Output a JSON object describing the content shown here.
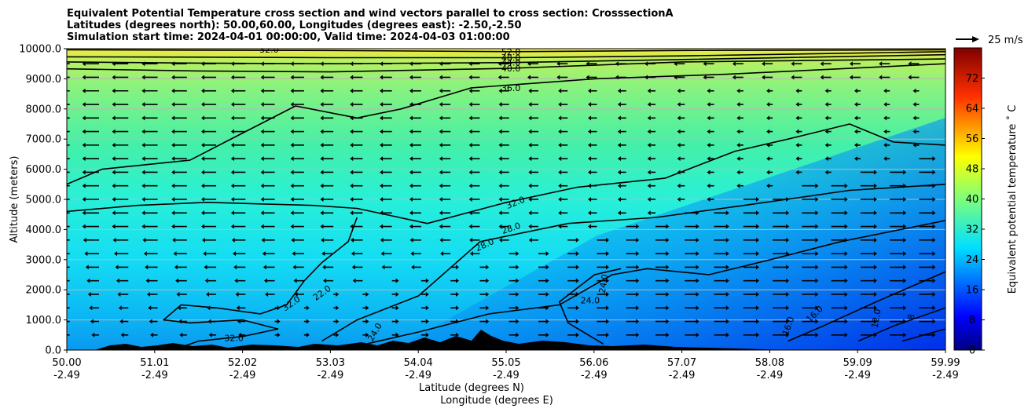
{
  "chart_data": {
    "type": "heatmap",
    "title_lines": [
      "Equivalent Potential Temperature cross section and wind vectors parallel to cross section: CrosssectionA",
      "Latitudes (degrees north): 50.00,60.00, Longitudes (degrees east): -2.50,-2.50",
      "Simulation start time: 2024-04-01 00:00:00, Valid time: 2024-04-03 01:00:00"
    ],
    "ylabel": "Altitude (meters)",
    "xlabel_lines": [
      "Latitude (degrees N)",
      "Longitude (degrees E)"
    ],
    "ylim": [
      0,
      10000
    ],
    "xlim": [
      50.0,
      59.99
    ],
    "y_ticks": [
      "0.0",
      "1000.0",
      "2000.0",
      "3000.0",
      "4000.0",
      "5000.0",
      "6000.0",
      "7000.0",
      "8000.0",
      "9000.0",
      "10000.0"
    ],
    "x_ticks": [
      {
        "lat": "50.00",
        "lon": "-2.49"
      },
      {
        "lat": "51.01",
        "lon": "-2.49"
      },
      {
        "lat": "52.02",
        "lon": "-2.49"
      },
      {
        "lat": "53.03",
        "lon": "-2.49"
      },
      {
        "lat": "54.04",
        "lon": "-2.49"
      },
      {
        "lat": "55.05",
        "lon": "-2.49"
      },
      {
        "lat": "56.06",
        "lon": "-2.49"
      },
      {
        "lat": "57.07",
        "lon": "-2.49"
      },
      {
        "lat": "58.08",
        "lon": "-2.49"
      },
      {
        "lat": "59.09",
        "lon": "-2.49"
      },
      {
        "lat": "59.99",
        "lon": "-2.49"
      }
    ],
    "grid": "horizontal",
    "colorbar": {
      "label": "Equivalent potential temperature ˚ C",
      "range": [
        0,
        80
      ],
      "ticks": [
        "0",
        "8",
        "16",
        "24",
        "32",
        "40",
        "48",
        "56",
        "64",
        "72"
      ],
      "colormap": "jet"
    },
    "quiver_key": {
      "label": "25 m/s",
      "value": 25
    },
    "contour_labels": [
      "52.0",
      "48.0",
      "44.0",
      "40.0",
      "36.0",
      "32.0",
      "28.0",
      "24.0",
      "16.0",
      "12.0",
      "8"
    ],
    "contours": [
      {
        "level": 52,
        "points": [
          [
            50.0,
            9960
          ],
          [
            51.5,
            9950
          ],
          [
            53,
            9940
          ],
          [
            55.05,
            9900
          ],
          [
            57,
            9940
          ],
          [
            59.99,
            9960
          ]
        ]
      },
      {
        "level": 48,
        "points": [
          [
            50.0,
            9730
          ],
          [
            51.5,
            9720
          ],
          [
            53,
            9700
          ],
          [
            55.05,
            9700
          ],
          [
            57,
            9760
          ],
          [
            59.99,
            9900
          ]
        ]
      },
      {
        "level": 44,
        "points": [
          [
            50.0,
            9560
          ],
          [
            51.5,
            9520
          ],
          [
            53,
            9500
          ],
          [
            55.05,
            9540
          ],
          [
            57,
            9640
          ],
          [
            59.99,
            9800
          ]
        ]
      },
      {
        "level": 40,
        "points": [
          [
            50.0,
            9330
          ],
          [
            51.5,
            9260
          ],
          [
            53,
            9230
          ],
          [
            55.05,
            9350
          ],
          [
            57,
            9560
          ],
          [
            59.99,
            9660
          ]
        ]
      },
      {
        "level": 36,
        "points": [
          [
            50.0,
            5500
          ],
          [
            50.4,
            6000
          ],
          [
            51.4,
            6300
          ],
          [
            51.8,
            6900
          ],
          [
            52.6,
            8100
          ],
          [
            53.3,
            7700
          ],
          [
            53.8,
            8000
          ],
          [
            54.6,
            8700
          ],
          [
            56,
            9000
          ],
          [
            57.5,
            9150
          ],
          [
            59.99,
            9500
          ]
        ]
      },
      {
        "level": 32,
        "points": [
          [
            50.0,
            4600
          ],
          [
            50.8,
            4800
          ],
          [
            51.6,
            4900
          ],
          [
            52.2,
            4850
          ],
          [
            52.8,
            4800
          ],
          [
            53.3,
            4700
          ],
          [
            54.1,
            4200
          ],
          [
            55.0,
            4900
          ],
          [
            55.8,
            5400
          ],
          [
            56.8,
            5700
          ],
          [
            57.6,
            6600
          ],
          [
            58.2,
            7000
          ],
          [
            58.9,
            7500
          ],
          [
            59.4,
            6900
          ],
          [
            59.99,
            6800
          ]
        ]
      },
      {
        "level": 32.1,
        "points": [
          [
            53.3,
            4400
          ],
          [
            53.2,
            3600
          ],
          [
            52.9,
            2900
          ],
          [
            52.7,
            2300
          ],
          [
            52.5,
            1500
          ],
          [
            52.2,
            1200
          ],
          [
            51.7,
            1400
          ],
          [
            51.3,
            1500
          ],
          [
            51.1,
            1000
          ],
          [
            51.4,
            900
          ],
          [
            52.0,
            1000
          ],
          [
            52.4,
            700
          ],
          [
            52.0,
            450
          ],
          [
            51.5,
            300
          ],
          [
            51.3,
            100
          ]
        ]
      },
      {
        "level": 28,
        "points": [
          [
            52.9,
            300
          ],
          [
            53.3,
            1000
          ],
          [
            54.0,
            1800
          ],
          [
            54.7,
            3600
          ],
          [
            55.7,
            4200
          ],
          [
            56.7,
            4400
          ],
          [
            57.7,
            4800
          ],
          [
            58.9,
            5300
          ],
          [
            59.99,
            5500
          ]
        ]
      },
      {
        "level": 24,
        "points": [
          [
            53.4,
            200
          ],
          [
            54.0,
            600
          ],
          [
            54.8,
            1200
          ],
          [
            55.6,
            1500
          ],
          [
            56.2,
            2500
          ],
          [
            56.6,
            2700
          ],
          [
            57.3,
            2500
          ],
          [
            58.0,
            3000
          ],
          [
            58.8,
            3600
          ],
          [
            59.99,
            4300
          ]
        ]
      },
      {
        "level": 24.1,
        "points": [
          [
            56.1,
            200
          ],
          [
            55.7,
            900
          ],
          [
            55.6,
            1600
          ],
          [
            56.0,
            2500
          ],
          [
            56.3,
            2700
          ]
        ]
      },
      {
        "level": 16,
        "points": [
          [
            58.2,
            300
          ],
          [
            58.6,
            800
          ],
          [
            59.2,
            1600
          ],
          [
            59.99,
            2600
          ]
        ]
      },
      {
        "level": 12,
        "points": [
          [
            59.0,
            300
          ],
          [
            59.4,
            800
          ],
          [
            59.99,
            1400
          ]
        ]
      },
      {
        "level": 8,
        "points": [
          [
            59.5,
            300
          ],
          [
            59.99,
            700
          ]
        ]
      }
    ]
  }
}
